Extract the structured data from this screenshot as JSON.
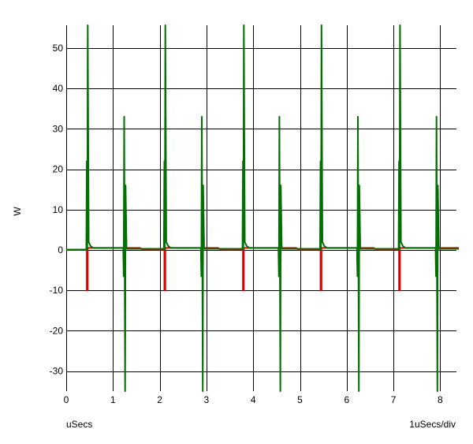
{
  "chart_data": {
    "type": "line",
    "title": "",
    "ylabel": "W",
    "xlabel": "uSecs",
    "scale_label": "1uSecs/div",
    "xlim": [
      0,
      8.4
    ],
    "ylim": [
      -35,
      56
    ],
    "xticks": [
      0,
      1,
      2,
      3,
      4,
      5,
      6,
      7,
      8
    ],
    "yticks": [
      -30,
      -20,
      -10,
      0,
      10,
      20,
      30,
      40,
      50
    ],
    "grid": true,
    "legend": "none",
    "series": [
      {
        "color": "#dd0000",
        "points": [
          [
            0,
            0.1
          ],
          [
            0.44,
            0.1
          ],
          [
            0.44,
            -10
          ],
          [
            0.46,
            -10
          ],
          [
            0.46,
            0.5
          ],
          [
            0.74,
            0.5
          ],
          [
            1.2,
            0.5
          ],
          [
            1.58,
            0.5
          ],
          [
            1.62,
            0.1
          ],
          [
            2.1,
            0.1
          ],
          [
            2.1,
            -10
          ],
          [
            2.12,
            -10
          ],
          [
            2.12,
            0.5
          ],
          [
            3.25,
            0.5
          ],
          [
            3.3,
            0.1
          ],
          [
            3.78,
            0.1
          ],
          [
            3.78,
            -10
          ],
          [
            3.8,
            -10
          ],
          [
            3.8,
            0.5
          ],
          [
            4.92,
            0.5
          ],
          [
            4.96,
            0.1
          ],
          [
            5.44,
            0.1
          ],
          [
            5.44,
            -10
          ],
          [
            5.46,
            -10
          ],
          [
            5.46,
            0.5
          ],
          [
            6.58,
            0.5
          ],
          [
            6.62,
            0.1
          ],
          [
            7.12,
            0.1
          ],
          [
            7.12,
            -10
          ],
          [
            7.14,
            -10
          ],
          [
            7.14,
            0.5
          ],
          [
            8.4,
            0.5
          ]
        ]
      },
      {
        "color": "#007000",
        "points": [
          [
            0,
            0
          ],
          [
            0.43,
            0
          ],
          [
            0.44,
            22
          ],
          [
            0.45,
            0
          ],
          [
            0.46,
            56
          ],
          [
            0.48,
            2
          ],
          [
            0.52,
            1
          ],
          [
            0.58,
            0.5
          ],
          [
            1.22,
            0.5
          ],
          [
            1.23,
            -6.5
          ],
          [
            1.24,
            33
          ],
          [
            1.25,
            0.3
          ],
          [
            1.26,
            -35
          ],
          [
            1.27,
            16
          ],
          [
            1.29,
            0.3
          ],
          [
            2.09,
            0.3
          ],
          [
            2.1,
            22
          ],
          [
            2.11,
            0
          ],
          [
            2.12,
            56
          ],
          [
            2.14,
            2
          ],
          [
            2.18,
            1
          ],
          [
            2.24,
            0.5
          ],
          [
            2.88,
            0.5
          ],
          [
            2.89,
            -6.5
          ],
          [
            2.9,
            33
          ],
          [
            2.91,
            0.3
          ],
          [
            2.92,
            -35
          ],
          [
            2.93,
            16
          ],
          [
            2.95,
            0.3
          ],
          [
            3.77,
            0.3
          ],
          [
            3.78,
            22
          ],
          [
            3.79,
            0
          ],
          [
            3.8,
            56
          ],
          [
            3.82,
            2
          ],
          [
            3.86,
            1
          ],
          [
            3.92,
            0.5
          ],
          [
            4.54,
            0.5
          ],
          [
            4.55,
            -6.5
          ],
          [
            4.56,
            33
          ],
          [
            4.57,
            0.3
          ],
          [
            4.58,
            -35
          ],
          [
            4.59,
            16
          ],
          [
            4.61,
            0.3
          ],
          [
            5.43,
            0.3
          ],
          [
            5.44,
            22
          ],
          [
            5.45,
            0
          ],
          [
            5.46,
            56
          ],
          [
            5.48,
            2
          ],
          [
            5.52,
            1
          ],
          [
            5.58,
            0.5
          ],
          [
            6.22,
            0.5
          ],
          [
            6.23,
            -6.5
          ],
          [
            6.24,
            33
          ],
          [
            6.25,
            0.3
          ],
          [
            6.26,
            -35
          ],
          [
            6.27,
            16
          ],
          [
            6.29,
            0.3
          ],
          [
            7.11,
            0.3
          ],
          [
            7.12,
            22
          ],
          [
            7.13,
            0
          ],
          [
            7.14,
            56
          ],
          [
            7.16,
            2
          ],
          [
            7.2,
            1
          ],
          [
            7.26,
            0.5
          ],
          [
            7.9,
            0.5
          ],
          [
            7.91,
            -6.5
          ],
          [
            7.92,
            33
          ],
          [
            7.93,
            0.3
          ],
          [
            7.94,
            -35
          ],
          [
            7.95,
            16
          ],
          [
            7.97,
            0.3
          ],
          [
            8.4,
            0.3
          ]
        ]
      }
    ]
  }
}
